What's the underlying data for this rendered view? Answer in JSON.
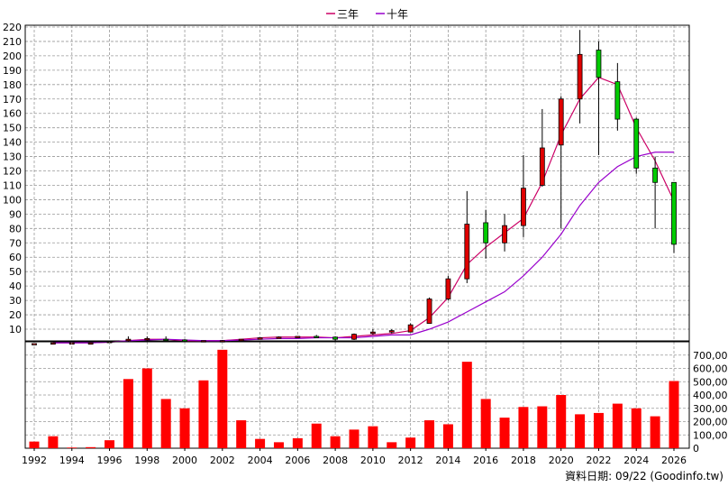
{
  "legend": {
    "items": [
      {
        "label": "三年",
        "color": "#cc0066"
      },
      {
        "label": "十年",
        "color": "#9900cc"
      }
    ]
  },
  "source_note": "資料日期: 09/22 (Goodinfo.tw)",
  "colors": {
    "up_candle": "#e00000",
    "down_candle": "#00cc00",
    "volume_bar": "#ff0000",
    "grid": "#999999",
    "axis": "#000000"
  },
  "chart_data": [
    {
      "type": "candlestick",
      "title": "",
      "ylim": [
        0,
        220
      ],
      "yticks": [
        10,
        20,
        30,
        40,
        50,
        60,
        70,
        80,
        90,
        100,
        110,
        120,
        130,
        140,
        150,
        160,
        170,
        180,
        190,
        200,
        210,
        220
      ],
      "grid": true,
      "legend_position": "top-center",
      "x_years": [
        1992,
        1993,
        1994,
        1995,
        1996,
        1997,
        1998,
        1999,
        2000,
        2001,
        2002,
        2003,
        2004,
        2005,
        2006,
        2007,
        2008,
        2009,
        2010,
        2011,
        2012,
        2013,
        2014,
        2015,
        2016,
        2017,
        2018,
        2019,
        2020,
        2021,
        2022,
        2023,
        2024,
        2025,
        2026
      ],
      "ohlc": [
        {
          "year": 1992,
          "open": 0,
          "high": 0,
          "low": 0,
          "close": 0
        },
        {
          "year": 1993,
          "open": 0.5,
          "high": 0.5,
          "low": 0.5,
          "close": 0.5
        },
        {
          "year": 1994,
          "open": 0.5,
          "high": 0.5,
          "low": 0.5,
          "close": 0.5
        },
        {
          "year": 1995,
          "open": 0.5,
          "high": 0.5,
          "low": 0.5,
          "close": 0.5
        },
        {
          "year": 1996,
          "open": 1,
          "high": 1.5,
          "low": 1,
          "close": 1.5
        },
        {
          "year": 1997,
          "open": 2,
          "high": 5,
          "low": 1,
          "close": 3
        },
        {
          "year": 1998,
          "open": 3,
          "high": 5,
          "low": 2,
          "close": 3.5
        },
        {
          "year": 1999,
          "open": 3,
          "high": 5,
          "low": 2,
          "close": 2.5
        },
        {
          "year": 2000,
          "open": 2.5,
          "high": 3,
          "low": 1.5,
          "close": 1.5
        },
        {
          "year": 2001,
          "open": 1.5,
          "high": 2,
          "low": 1,
          "close": 2
        },
        {
          "year": 2002,
          "open": 2,
          "high": 2.5,
          "low": 1.5,
          "close": 2
        },
        {
          "year": 2003,
          "open": 2,
          "high": 3,
          "low": 2,
          "close": 3
        },
        {
          "year": 2004,
          "open": 3,
          "high": 4,
          "low": 3,
          "close": 4
        },
        {
          "year": 2005,
          "open": 4,
          "high": 5,
          "low": 4,
          "close": 4.5
        },
        {
          "year": 2006,
          "open": 4.5,
          "high": 5,
          "low": 4,
          "close": 5
        },
        {
          "year": 2007,
          "open": 5,
          "high": 6,
          "low": 4,
          "close": 4.5
        },
        {
          "year": 2008,
          "open": 4.5,
          "high": 5,
          "low": 1,
          "close": 3
        },
        {
          "year": 2009,
          "open": 3,
          "high": 7,
          "low": 2.5,
          "close": 6.5
        },
        {
          "year": 2010,
          "open": 7,
          "high": 10,
          "low": 6,
          "close": 8
        },
        {
          "year": 2011,
          "open": 8,
          "high": 10,
          "low": 7,
          "close": 9
        },
        {
          "year": 2012,
          "open": 8,
          "high": 14,
          "low": 8,
          "close": 13
        },
        {
          "year": 2013,
          "open": 14,
          "high": 32,
          "low": 14,
          "close": 31
        },
        {
          "year": 2014,
          "open": 31,
          "high": 47,
          "low": 30,
          "close": 45
        },
        {
          "year": 2015,
          "open": 45,
          "high": 106,
          "low": 42,
          "close": 83
        },
        {
          "year": 2016,
          "open": 84,
          "high": 93,
          "low": 59,
          "close": 70
        },
        {
          "year": 2017,
          "open": 70,
          "high": 90,
          "low": 64,
          "close": 82
        },
        {
          "year": 2018,
          "open": 82,
          "high": 131,
          "low": 74,
          "close": 108
        },
        {
          "year": 2019,
          "open": 110,
          "high": 163,
          "low": 109,
          "close": 136
        },
        {
          "year": 2020,
          "open": 138,
          "high": 172,
          "low": 80,
          "close": 170
        },
        {
          "year": 2021,
          "open": 170,
          "high": 218,
          "low": 153,
          "close": 201
        },
        {
          "year": 2022,
          "open": 204,
          "high": 210,
          "low": 131,
          "close": 185
        },
        {
          "year": 2023,
          "open": 182,
          "high": 195,
          "low": 148,
          "close": 156
        },
        {
          "year": 2024,
          "open": 156,
          "high": 157,
          "low": 118,
          "close": 122
        },
        {
          "year": 2025,
          "open": 122,
          "high": 130,
          "low": 80,
          "close": 112
        },
        {
          "year": 2026,
          "open": 112,
          "high": 112,
          "low": 63,
          "close": 69
        }
      ],
      "series": [
        {
          "name": "三年",
          "color": "#cc0066",
          "x": [
            1993,
            1994,
            1995,
            1996,
            1997,
            1998,
            1999,
            2000,
            2001,
            2002,
            2003,
            2004,
            2005,
            2006,
            2007,
            2008,
            2009,
            2010,
            2011,
            2012,
            2013,
            2014,
            2015,
            2016,
            2017,
            2018,
            2019,
            2020,
            2021,
            2022,
            2023,
            2024,
            2025,
            2026
          ],
          "values": [
            0.5,
            0.5,
            0.5,
            1,
            2,
            3,
            3,
            2,
            2,
            2,
            3,
            4,
            4.5,
            4.5,
            4.5,
            4,
            5,
            6,
            7,
            9,
            18,
            32,
            55,
            67,
            77,
            87,
            112,
            145,
            170,
            185,
            180,
            150,
            127,
            99
          ]
        },
        {
          "name": "十年",
          "color": "#9900cc",
          "x": [
            1993,
            1994,
            1995,
            1996,
            1997,
            1998,
            1999,
            2000,
            2001,
            2002,
            2003,
            2004,
            2005,
            2006,
            2007,
            2008,
            2009,
            2010,
            2011,
            2012,
            2013,
            2014,
            2015,
            2016,
            2017,
            2018,
            2019,
            2020,
            2021,
            2022,
            2023,
            2024,
            2025,
            2026
          ],
          "values": [
            0.5,
            0.5,
            0.5,
            1,
            2,
            2.5,
            3,
            2.5,
            2,
            2,
            2.5,
            3,
            3.5,
            3.5,
            4,
            4,
            4,
            5,
            6,
            6,
            10,
            15,
            22,
            29,
            36,
            47,
            60,
            76,
            96,
            112,
            123,
            130,
            133,
            133
          ]
        }
      ]
    },
    {
      "type": "bar",
      "title": "",
      "ylim": [
        0,
        800000
      ],
      "yticks": [
        "0",
        "100,000",
        "200,000",
        "300,000",
        "400,000",
        "500,000",
        "600,000",
        "700,000"
      ],
      "ytick_values": [
        0,
        100000,
        200000,
        300000,
        400000,
        500000,
        600000,
        700000
      ],
      "grid": true,
      "categories": [
        1992,
        1993,
        1994,
        1995,
        1996,
        1997,
        1998,
        1999,
        2000,
        2001,
        2002,
        2003,
        2004,
        2005,
        2006,
        2007,
        2008,
        2009,
        2010,
        2011,
        2012,
        2013,
        2014,
        2015,
        2016,
        2017,
        2018,
        2019,
        2020,
        2021,
        2022,
        2023,
        2024,
        2025,
        2026
      ],
      "values": [
        50000,
        90000,
        5000,
        8000,
        60000,
        520000,
        600000,
        370000,
        300000,
        510000,
        740000,
        210000,
        70000,
        45000,
        75000,
        185000,
        90000,
        140000,
        165000,
        45000,
        80000,
        210000,
        180000,
        650000,
        370000,
        230000,
        310000,
        315000,
        400000,
        255000,
        265000,
        335000,
        300000,
        240000,
        505000
      ],
      "xtick_labels": [
        "1992",
        "1994",
        "1996",
        "1998",
        "2000",
        "2002",
        "2004",
        "2006",
        "2008",
        "2010",
        "2012",
        "2014",
        "2016",
        "2018",
        "2020",
        "2022",
        "2024",
        "2026"
      ]
    }
  ]
}
